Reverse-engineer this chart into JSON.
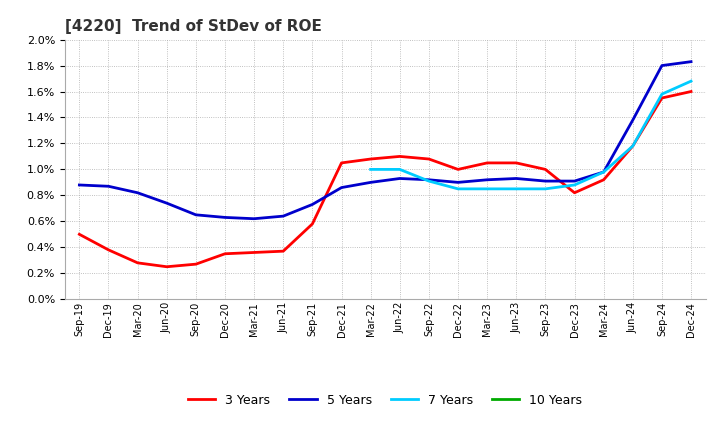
{
  "title": "[4220]  Trend of StDev of ROE",
  "ylim": [
    0.0,
    0.02
  ],
  "yticks": [
    0.0,
    0.002,
    0.004,
    0.006,
    0.008,
    0.01,
    0.012,
    0.014,
    0.016,
    0.018,
    0.02
  ],
  "xtick_labels": [
    "Sep-19",
    "Dec-19",
    "Mar-20",
    "Jun-20",
    "Sep-20",
    "Dec-20",
    "Mar-21",
    "Jun-21",
    "Sep-21",
    "Dec-21",
    "Mar-22",
    "Jun-22",
    "Sep-22",
    "Dec-22",
    "Mar-23",
    "Jun-23",
    "Sep-23",
    "Dec-23",
    "Mar-24",
    "Jun-24",
    "Sep-24",
    "Dec-24"
  ],
  "y_3yr": [
    0.005,
    0.0038,
    0.0028,
    0.0025,
    0.0027,
    0.0035,
    0.0036,
    0.0037,
    0.0058,
    0.0105,
    0.0108,
    0.011,
    0.0108,
    0.01,
    0.0105,
    0.0105,
    0.01,
    0.0082,
    0.0092,
    0.0118,
    0.0155,
    0.016
  ],
  "y_5yr": [
    0.0088,
    0.0087,
    0.0082,
    0.0074,
    0.0065,
    0.0063,
    0.0062,
    0.0064,
    0.0073,
    0.0086,
    0.009,
    0.0093,
    0.0092,
    0.009,
    0.0092,
    0.0093,
    0.0091,
    0.0091,
    0.0098,
    0.0138,
    0.018,
    0.0183
  ],
  "y_7yr": [
    null,
    null,
    null,
    null,
    null,
    null,
    null,
    null,
    null,
    null,
    0.01,
    0.01,
    0.0091,
    0.0085,
    0.0085,
    0.0085,
    0.0085,
    0.0088,
    0.0098,
    0.0118,
    0.0158,
    0.0168
  ],
  "y_10yr": [
    null,
    null,
    null,
    null,
    null,
    null,
    null,
    null,
    null,
    null,
    null,
    null,
    null,
    null,
    null,
    null,
    null,
    null,
    null,
    null,
    null,
    null
  ],
  "background_color": "#ffffff",
  "grid_color": "#999999",
  "title_fontsize": 11,
  "title_color": "#333333",
  "legend_entries": [
    "3 Years",
    "5 Years",
    "7 Years",
    "10 Years"
  ],
  "legend_colors": [
    "#FF0000",
    "#0000CC",
    "#00CCFF",
    "#00AA00"
  ]
}
